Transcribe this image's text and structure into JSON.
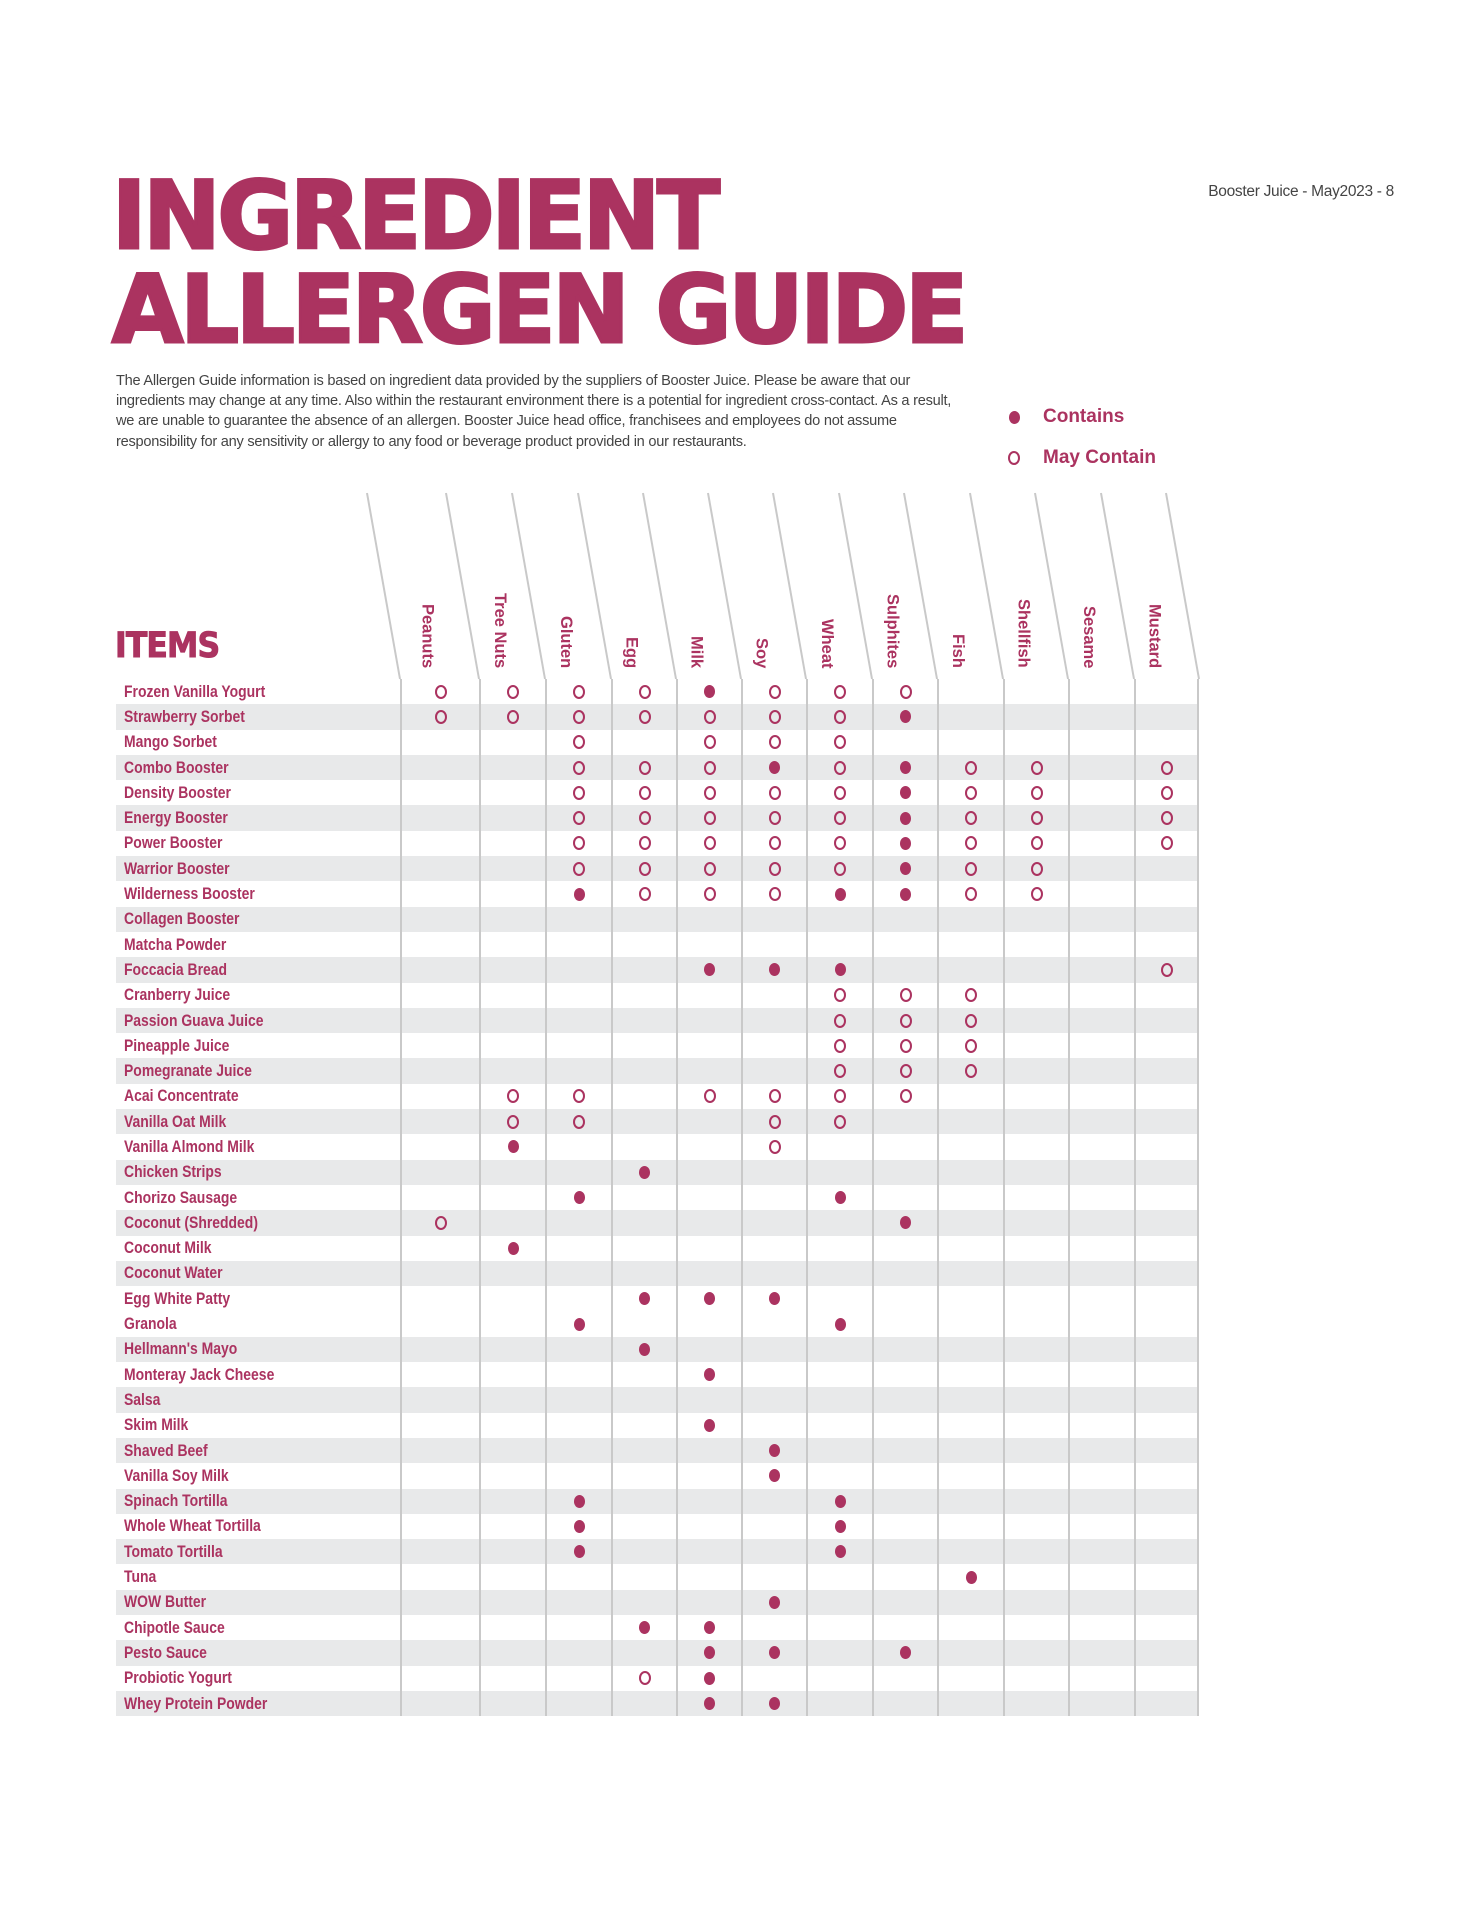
{
  "page_ref": "Booster Juice - May2023 - 8",
  "title": {
    "line1": "INGREDIENT",
    "line2": "ALLERGEN GUIDE"
  },
  "disclaimer": "The Allergen Guide information is based on ingredient data provided by the suppliers of Booster Juice. Please be aware that our ingredients may change at any time.  Also within the restaurant environment there is a potential for ingredient cross-contact.  As a result, we are unable to guarantee the absence of an allergen. Booster Juice head office, franchisees and employees do not assume responsibility for any sensitivity or allergy to any food or beverage product provided in our restaurants.",
  "legend": {
    "contains": "Contains",
    "may_contain": "May Contain"
  },
  "colors": {
    "brand": "#ab3360",
    "row_shade": "#e8e9ea",
    "grid_line": "#c9c9c9"
  },
  "table": {
    "items_heading": "ITEMS",
    "cell_codes": {
      "C": "contains (filled dot)",
      "M": "may contain (open circle)",
      "-": "none"
    },
    "columns": [
      "Peanuts",
      "Tree Nuts",
      "Gluten",
      "Egg",
      "Milk",
      "Soy",
      "Wheat",
      "Sulphites",
      "Fish",
      "Shellfish",
      "Sesame",
      "Mustard"
    ],
    "rows": [
      {
        "name": "Frozen Vanilla Yogurt",
        "cells": "MMMMCMMM----"
      },
      {
        "name": "Strawberry Sorbet",
        "cells": "MMMMMMMC----"
      },
      {
        "name": "Mango Sorbet",
        "cells": "--M-MMM-----"
      },
      {
        "name": "Combo Booster",
        "cells": "--MMMCMCMM-M"
      },
      {
        "name": "Density Booster",
        "cells": "--MMMMMCMM-M"
      },
      {
        "name": "Energy Booster",
        "cells": "--MMMMMCMM-M"
      },
      {
        "name": "Power Booster",
        "cells": "--MMMMMCMM-M"
      },
      {
        "name": "Warrior Booster",
        "cells": "--MMMMMCMM--"
      },
      {
        "name": "Wilderness Booster",
        "cells": "--CMMMCCMM--"
      },
      {
        "name": "Collagen Booster",
        "cells": "------------"
      },
      {
        "name": "Matcha Powder",
        "cells": "------------"
      },
      {
        "name": "Foccacia Bread",
        "cells": "----CCC----M"
      },
      {
        "name": "Cranberry Juice",
        "cells": "------MMM---"
      },
      {
        "name": "Passion Guava Juice",
        "cells": "------MMM---"
      },
      {
        "name": "Pineapple Juice",
        "cells": "------MMM---"
      },
      {
        "name": "Pomegranate Juice",
        "cells": "------MMM---"
      },
      {
        "name": "Acai Concentrate",
        "cells": "-MM-MMMM----"
      },
      {
        "name": "Vanilla Oat Milk",
        "cells": "-MM--MM-----"
      },
      {
        "name": "Vanilla Almond Milk",
        "cells": "-C---M------"
      },
      {
        "name": "Chicken Strips",
        "cells": "---C--------"
      },
      {
        "name": "Chorizo Sausage",
        "cells": "--C---C-----"
      },
      {
        "name": "Coconut (Shredded)",
        "cells": "M------C----"
      },
      {
        "name": "Coconut Milk",
        "cells": "-C----------"
      },
      {
        "name": "Coconut Water",
        "cells": "------------"
      },
      {
        "name": "Egg White Patty",
        "cells": "---CCC------"
      },
      {
        "name": "Granola",
        "cells": "--C---C-----"
      },
      {
        "name": "Hellmann's Mayo",
        "cells": "---C--------"
      },
      {
        "name": "Monteray Jack Cheese",
        "cells": "----C-------"
      },
      {
        "name": "Salsa",
        "cells": "------------"
      },
      {
        "name": "Skim Milk",
        "cells": "----C-------"
      },
      {
        "name": "Shaved Beef",
        "cells": "-----C------"
      },
      {
        "name": "Vanilla Soy Milk",
        "cells": "-----C------"
      },
      {
        "name": "Spinach Tortilla",
        "cells": "--C---C-----"
      },
      {
        "name": "Whole Wheat Tortilla",
        "cells": "--C---C-----"
      },
      {
        "name": "Tomato Tortilla",
        "cells": "--C---C-----"
      },
      {
        "name": "Tuna",
        "cells": "--------C---"
      },
      {
        "name": "WOW Butter",
        "cells": "-----C------"
      },
      {
        "name": "Chipotle Sauce",
        "cells": "---CC-------"
      },
      {
        "name": "Pesto Sauce",
        "cells": "----CC-C----"
      },
      {
        "name": "Probiotic Yogurt",
        "cells": "---MC-------"
      },
      {
        "name": "Whey Protein Powder",
        "cells": "----CC------"
      }
    ]
  }
}
